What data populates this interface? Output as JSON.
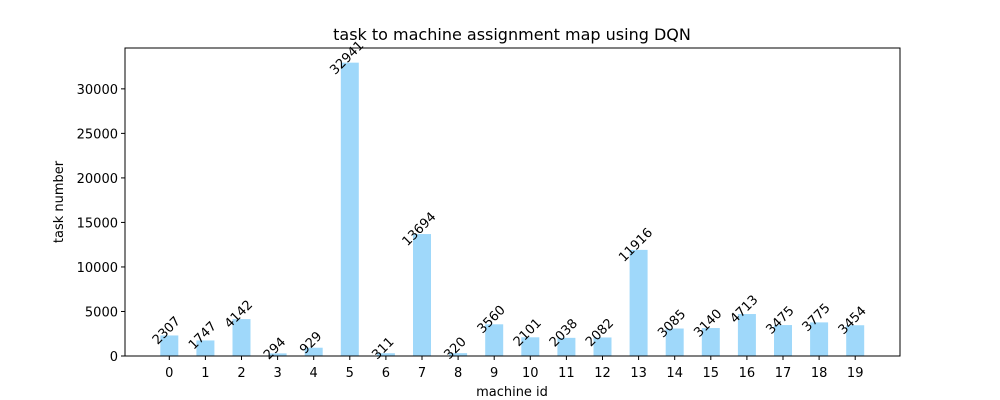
{
  "chart_data": {
    "type": "bar",
    "title": "task to machine assignment map using DQN",
    "xlabel": "machine id",
    "ylabel": "task number",
    "categories": [
      "0",
      "1",
      "2",
      "3",
      "4",
      "5",
      "6",
      "7",
      "8",
      "9",
      "10",
      "11",
      "12",
      "13",
      "14",
      "15",
      "16",
      "17",
      "18",
      "19"
    ],
    "values": [
      2307,
      1747,
      4142,
      294,
      929,
      32941,
      311,
      13694,
      320,
      3560,
      2101,
      2038,
      2082,
      11916,
      3085,
      3140,
      4713,
      3475,
      3775,
      3454
    ],
    "data_labels": [
      "2307",
      "1747",
      "4142",
      "294",
      "929",
      "32941",
      "311",
      "13694",
      "320",
      "3560",
      "2101",
      "2038",
      "2082",
      "11916",
      "3085",
      "3140",
      "4713",
      "3475",
      "3775",
      "3454"
    ],
    "yticks": [
      0,
      5000,
      10000,
      15000,
      20000,
      25000,
      30000
    ],
    "ylim": [
      0,
      34588
    ],
    "bar_color": "#9fd8fa",
    "grid": false,
    "legend": "none"
  }
}
